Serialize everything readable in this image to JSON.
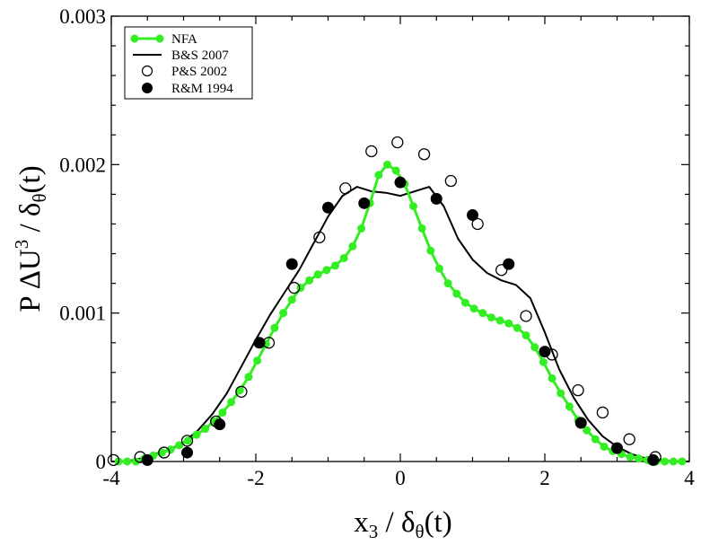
{
  "chart_data": {
    "type": "line",
    "xlabel": {
      "main": "x",
      "sub": "3",
      "mid": " / δ",
      "sub2": "θ",
      "tail": "(t)"
    },
    "ylabel": {
      "main": "P ΔU",
      "sup": "3",
      "mid": " / δ",
      "sub": "θ",
      "tail": "(t)"
    },
    "xlim": [
      -4,
      4
    ],
    "ylim": [
      0,
      0.003
    ],
    "x_ticks": [
      -4,
      -2,
      0,
      2,
      4
    ],
    "x_tick_labels": [
      "-4",
      "-2",
      "0",
      "2",
      "4"
    ],
    "y_ticks": [
      0,
      0.001,
      0.002,
      0.003
    ],
    "y_tick_labels": [
      "0",
      "0.001",
      "0.002",
      "0.003"
    ],
    "legend_position": "top-left",
    "colors": {
      "nfa": "#33ee22",
      "bs2007": "#000000",
      "markers": "#000000"
    },
    "series": [
      {
        "name": "NFA",
        "style": "line-markers",
        "x": [
          -3.9,
          -3.78,
          -3.66,
          -3.54,
          -3.42,
          -3.3,
          -3.18,
          -3.06,
          -2.94,
          -2.82,
          -2.7,
          -2.58,
          -2.46,
          -2.34,
          -2.22,
          -2.1,
          -1.98,
          -1.86,
          -1.74,
          -1.62,
          -1.5,
          -1.38,
          -1.26,
          -1.14,
          -1.02,
          -0.9,
          -0.78,
          -0.66,
          -0.54,
          -0.42,
          -0.3,
          -0.18,
          -0.06,
          0.06,
          0.18,
          0.3,
          0.42,
          0.54,
          0.66,
          0.78,
          0.9,
          1.02,
          1.14,
          1.26,
          1.38,
          1.5,
          1.62,
          1.74,
          1.86,
          1.98,
          2.1,
          2.22,
          2.34,
          2.46,
          2.58,
          2.7,
          2.82,
          2.94,
          3.06,
          3.18,
          3.3,
          3.42,
          3.54,
          3.66,
          3.78,
          3.9
        ],
        "y": [
          0.0,
          0.0,
          0.0,
          2e-05,
          4e-05,
          6e-05,
          8e-05,
          0.00011,
          0.00014,
          0.00018,
          0.00022,
          0.00027,
          0.00033,
          0.0004,
          0.00048,
          0.00057,
          0.00068,
          0.00079,
          0.0009,
          0.001,
          0.00109,
          0.00117,
          0.00122,
          0.00126,
          0.00129,
          0.00132,
          0.00137,
          0.00145,
          0.00157,
          0.00174,
          0.00193,
          0.002,
          0.00196,
          0.00187,
          0.00172,
          0.00157,
          0.00142,
          0.0013,
          0.0012,
          0.00113,
          0.00107,
          0.00103,
          0.001,
          0.00097,
          0.00095,
          0.00093,
          0.0009,
          0.00085,
          0.00077,
          0.00067,
          0.00056,
          0.00046,
          0.00037,
          0.00028,
          0.00021,
          0.00015,
          0.0001,
          7e-05,
          5e-05,
          3e-05,
          2e-05,
          1e-05,
          0.0,
          0.0,
          0.0,
          0.0
        ]
      },
      {
        "name": "B&S 2007",
        "style": "line",
        "x": [
          -4.0,
          -3.8,
          -3.6,
          -3.4,
          -3.2,
          -3.0,
          -2.8,
          -2.6,
          -2.4,
          -2.2,
          -2.0,
          -1.8,
          -1.6,
          -1.4,
          -1.2,
          -1.0,
          -0.8,
          -0.6,
          -0.4,
          -0.2,
          0.0,
          0.2,
          0.4,
          0.6,
          0.8,
          1.0,
          1.2,
          1.4,
          1.6,
          1.8,
          2.0,
          2.2,
          2.4,
          2.6,
          2.8,
          3.0,
          3.2,
          3.4,
          3.6,
          3.8,
          4.0
        ],
        "y": [
          0.0,
          0.0,
          2e-05,
          5e-05,
          8e-05,
          0.00013,
          0.00021,
          0.00032,
          0.00046,
          0.00064,
          0.00082,
          0.00099,
          0.00114,
          0.00129,
          0.00147,
          0.00165,
          0.00179,
          0.00185,
          0.00182,
          0.00181,
          0.00179,
          0.00182,
          0.00185,
          0.00172,
          0.0015,
          0.00136,
          0.00127,
          0.00122,
          0.00119,
          0.0011,
          0.00087,
          0.00062,
          0.00043,
          0.00028,
          0.00017,
          0.0001,
          5e-05,
          2e-05,
          1e-05,
          0.0,
          0.0
        ]
      },
      {
        "name": "P&S 2002",
        "style": "open-circles",
        "x": [
          -3.97,
          -3.6,
          -3.27,
          -2.95,
          -2.55,
          -2.2,
          -1.82,
          -1.47,
          -1.12,
          -0.76,
          -0.4,
          -0.04,
          0.33,
          0.7,
          1.07,
          1.4,
          1.74,
          2.1,
          2.46,
          2.8,
          3.17,
          3.53
        ],
        "y": [
          1e-05,
          3e-05,
          6e-05,
          0.00014,
          0.00027,
          0.00047,
          0.0008,
          0.00117,
          0.00151,
          0.00184,
          0.00209,
          0.00215,
          0.00207,
          0.00189,
          0.0016,
          0.00129,
          0.00098,
          0.00072,
          0.00048,
          0.00033,
          0.00015,
          3e-05
        ]
      },
      {
        "name": "R&M 1994",
        "style": "filled-circles",
        "x": [
          -3.5,
          -2.95,
          -2.5,
          -1.95,
          -1.5,
          -1.0,
          -0.5,
          0.0,
          0.5,
          1.0,
          1.5,
          2.0,
          2.5,
          3.0,
          3.5
        ],
        "y": [
          1e-05,
          6e-05,
          0.00025,
          0.0008,
          0.00133,
          0.00171,
          0.00174,
          0.00188,
          0.00177,
          0.00166,
          0.00133,
          0.00074,
          0.00026,
          9e-05,
          1e-05
        ]
      }
    ]
  }
}
